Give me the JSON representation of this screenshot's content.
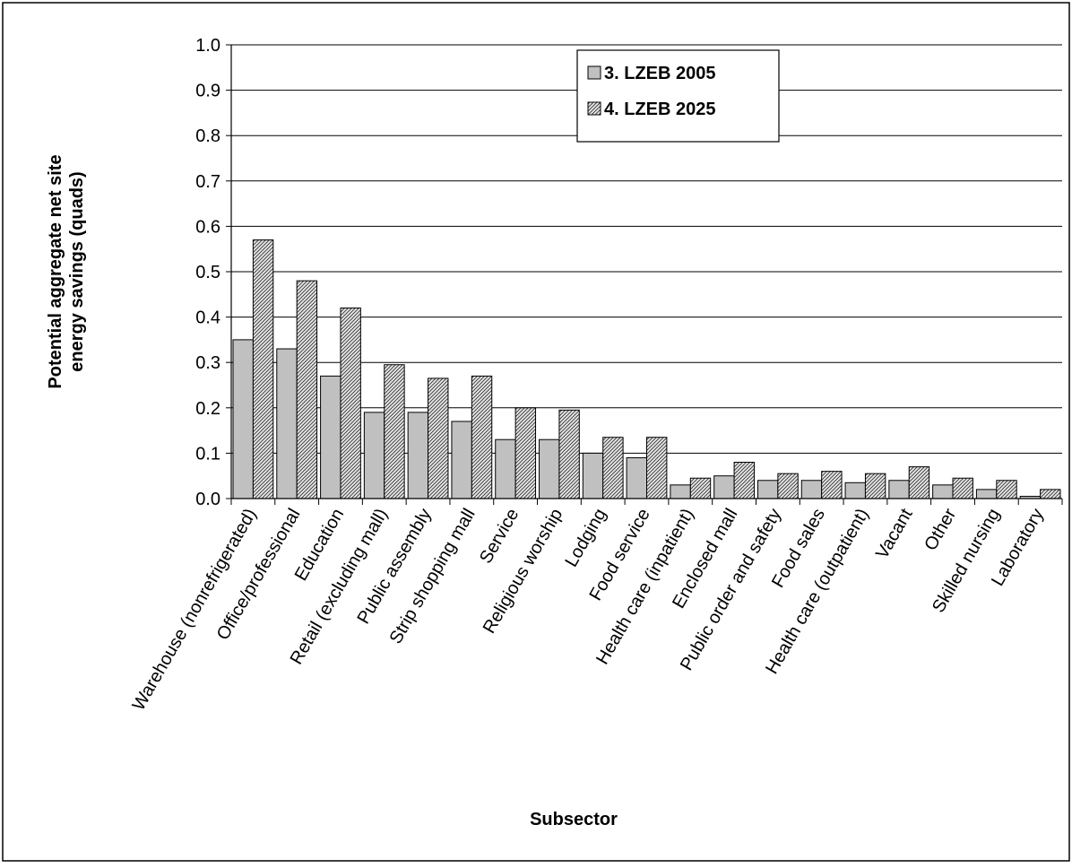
{
  "chart_data": {
    "type": "bar",
    "title": "",
    "xlabel": "Subsector",
    "ylabel_lines": [
      "Potential aggregate net site",
      "energy savings (quads)"
    ],
    "ylim": [
      0,
      1.0
    ],
    "yticks": [
      "0.0",
      "0.1",
      "0.2",
      "0.3",
      "0.4",
      "0.5",
      "0.6",
      "0.7",
      "0.8",
      "0.9",
      "1.0"
    ],
    "grid": true,
    "legend_position": "top-center",
    "categories": [
      "Warehouse (nonrefrigerated)",
      "Office/professional",
      "Education",
      "Retail (excluding mall)",
      "Public assembly",
      "Strip shopping mall",
      "Service",
      "Religious worship",
      "Lodging",
      "Food service",
      "Health care (inpatient)",
      "Enclosed mall",
      "Public order and safety",
      "Food sales",
      "Health care (outpatient)",
      "Vacant",
      "Other",
      "Skilled nursing",
      "Laboratory"
    ],
    "series": [
      {
        "name": "3. LZEB 2005",
        "fill": "solid-gray",
        "color": "#c0c0c0",
        "values": [
          0.35,
          0.33,
          0.27,
          0.19,
          0.19,
          0.17,
          0.13,
          0.13,
          0.1,
          0.09,
          0.03,
          0.05,
          0.04,
          0.04,
          0.035,
          0.04,
          0.03,
          0.02,
          0.005
        ]
      },
      {
        "name": "4. LZEB 2025",
        "fill": "diagonal-hatch",
        "color": "#a0a0a0",
        "values": [
          0.57,
          0.48,
          0.42,
          0.295,
          0.265,
          0.27,
          0.2,
          0.195,
          0.135,
          0.135,
          0.045,
          0.08,
          0.055,
          0.06,
          0.055,
          0.07,
          0.045,
          0.04,
          0.02
        ]
      }
    ]
  }
}
